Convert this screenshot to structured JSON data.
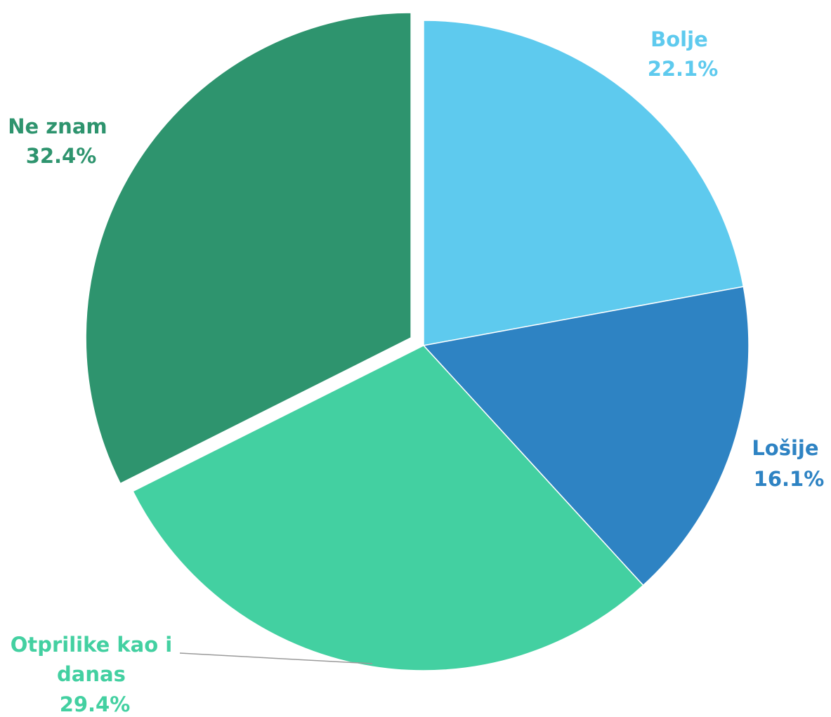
{
  "chart_data": {
    "type": "pie",
    "slices": [
      {
        "name": "Bolje",
        "value": 22.1,
        "value_label": "22.1%",
        "color": "#5ECAEE"
      },
      {
        "name": "Lošije",
        "value": 16.1,
        "value_label": "16.1%",
        "color": "#2E83C3"
      },
      {
        "name": "Otprilike kao i danas",
        "name_lines": [
          "Otprilike kao i",
          "danas"
        ],
        "value": 29.4,
        "value_label": "29.4%",
        "color": "#43D0A1"
      },
      {
        "name": "Ne znam",
        "value": 32.4,
        "value_label": "32.4%",
        "color": "#2E946E",
        "exploded": true
      }
    ],
    "start_angle_deg": 0,
    "direction": "clockwise",
    "legend": "none",
    "data_labels": "outside, category name and percentage"
  }
}
